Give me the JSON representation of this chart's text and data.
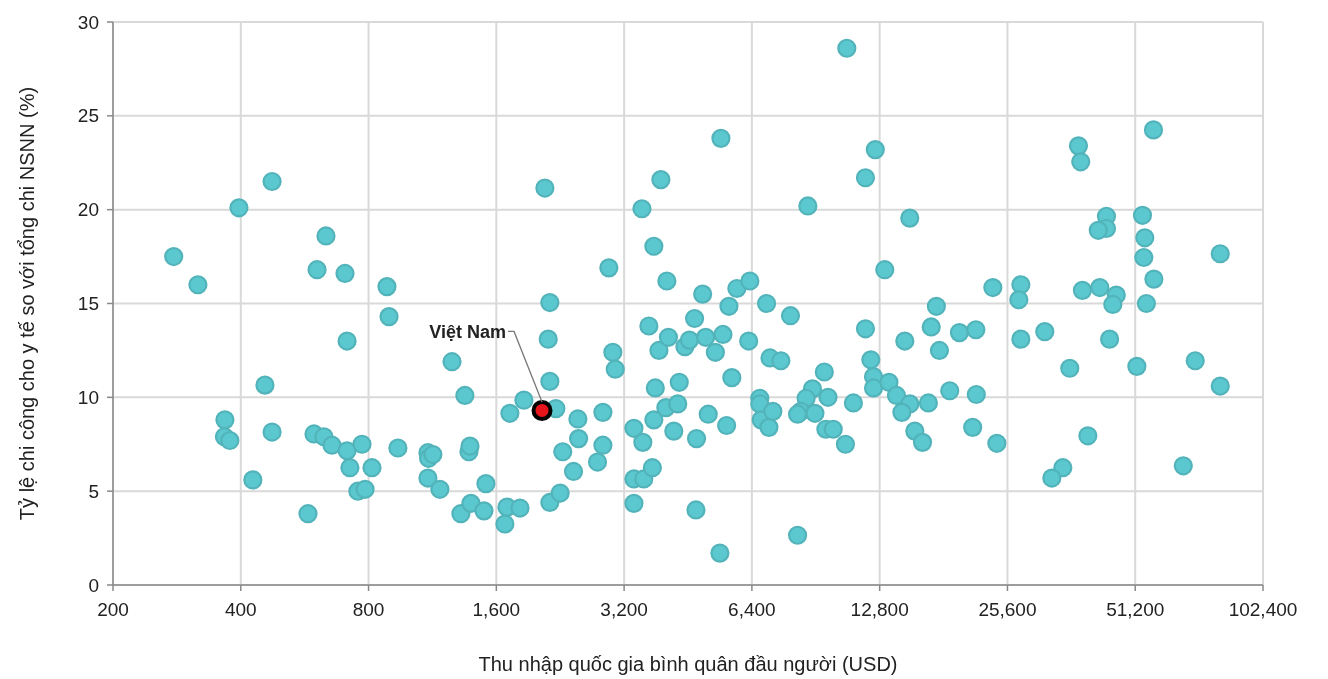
{
  "chart_data": {
    "type": "scatter",
    "xlabel": "Thu nhập quốc gia bình quân đầu người (USD)",
    "ylabel": "Tỷ lệ chi công cho y tế so với tổng chi NSNN (%)",
    "log": "x",
    "grid": true,
    "marker": "circle",
    "xlim": [
      200,
      102400
    ],
    "ylim": [
      0,
      30
    ],
    "xticks": [
      200,
      400,
      800,
      {
        "value": 1600,
        "label": "1,600"
      },
      {
        "value": 3200,
        "label": "3,200"
      },
      {
        "value": 6400,
        "label": "6,400"
      },
      {
        "value": 12800,
        "label": "12,800"
      },
      {
        "value": 25600,
        "label": "25,600"
      },
      {
        "value": 51200,
        "label": "51,200"
      },
      {
        "value": 102400,
        "label": "102,400"
      }
    ],
    "yticks": [
      0,
      5,
      10,
      15,
      20,
      25,
      30
    ],
    "annotations": [
      {
        "text": "Việt Nam",
        "x": 2050,
        "y": 9.3
      }
    ],
    "series": [
      {
        "color": "#5bc8cf",
        "x": [
          278,
          317,
          396,
          367,
          366,
          377,
          427,
          456,
          474,
          474,
          576,
          595,
          605,
          628,
          635,
          656,
          704,
          712,
          712,
          723,
          755,
          772,
          785,
          815,
          884,
          894,
          938,
          1104,
          1108,
          1104,
          1134,
          1178,
          1258,
          1320,
          1349,
          1379,
          1387,
          1394,
          1496,
          1512,
          1676,
          1695,
          1722,
          1819,
          1858,
          2082,
          2210,
          2139,
          2120,
          2139,
          2490,
          2500,
          2294,
          2432,
          2139,
          2262,
          2852,
          2852,
          2770,
          2946,
          3010,
          3050,
          3375,
          3542,
          3375,
          3560,
          3730,
          3375,
          3525,
          3906,
          3760,
          4035,
          3660,
          3865,
          4070,
          3790,
          4316,
          4013,
          4280,
          3760,
          4190,
          4740,
          4725,
          5380,
          5410,
          4450,
          4560,
          4690,
          4900,
          4980,
          5250,
          5470,
          5050,
          5580,
          5740,
          5650,
          5900,
          6330,
          6290,
          6930,
          7890,
          7060,
          7490,
          6680,
          6680,
          6730,
          7020,
          7170,
          8200,
          10710,
          8670,
          11850,
          12500,
          13160,
          11850,
          12200,
          12380,
          12380,
          9480,
          9670,
          8890,
          8590,
          8350,
          9010,
          8200,
          9560,
          9950,
          10630,
          11100,
          15070,
          17410,
          16930,
          14670,
          17700,
          19730,
          21570,
          23650,
          13460,
          14020,
          15070,
          14440,
          16670,
          18720,
          21620,
          15490,
          16150,
          21200,
          24170,
          27530,
          27230,
          27530,
          31350,
          35900,
          39600,
          34570,
          32570,
          37630,
          38100,
          43800,
          43800,
          41900,
          38450,
          42250,
          46200,
          45340,
          44560,
          53260,
          53930,
          53640,
          56650,
          54400,
          51660,
          56530,
          66450,
          70900,
          81200,
          81200
        ],
        "values": [
          17.5,
          16.0,
          20.1,
          8.8,
          7.9,
          7.7,
          5.6,
          10.65,
          21.5,
          8.15,
          3.8,
          8.05,
          16.8,
          7.9,
          18.6,
          7.45,
          16.6,
          13.0,
          7.15,
          6.25,
          5.0,
          7.5,
          5.1,
          6.25,
          15.9,
          14.3,
          7.3,
          7.05,
          6.75,
          5.7,
          6.95,
          5.1,
          11.9,
          3.8,
          10.1,
          7.1,
          7.4,
          4.35,
          3.95,
          5.4,
          3.25,
          4.15,
          9.15,
          4.1,
          9.85,
          21.15,
          9.4,
          15.05,
          13.1,
          10.85,
          8.85,
          7.8,
          7.1,
          6.05,
          4.4,
          4.9,
          9.2,
          7.45,
          6.55,
          16.9,
          12.4,
          11.5,
          8.35,
          7.6,
          5.65,
          5.65,
          6.25,
          4.35,
          20.05,
          21.6,
          18.05,
          16.2,
          13.8,
          12.5,
          13.2,
          10.5,
          10.8,
          9.45,
          9.65,
          8.8,
          8.2,
          7.8,
          4.0,
          1.7,
          23.8,
          12.7,
          13.05,
          14.2,
          15.5,
          13.2,
          12.4,
          13.35,
          9.1,
          8.5,
          11.05,
          14.85,
          15.8,
          16.2,
          13.0,
          15.0,
          14.35,
          12.1,
          11.95,
          9.95,
          9.65,
          8.8,
          8.4,
          9.25,
          2.65,
          28.6,
          20.2,
          21.7,
          23.2,
          16.8,
          13.65,
          12.0,
          11.1,
          10.5,
          11.35,
          10.0,
          10.45,
          9.95,
          9.25,
          9.15,
          9.1,
          8.3,
          8.3,
          7.5,
          9.7,
          19.55,
          14.85,
          13.75,
          13.0,
          12.5,
          13.45,
          13.6,
          15.85,
          10.8,
          10.1,
          9.65,
          9.2,
          9.7,
          10.35,
          10.15,
          8.2,
          7.6,
          8.4,
          7.55,
          16.0,
          15.2,
          13.1,
          13.5,
          11.55,
          7.95,
          6.25,
          5.7,
          23.4,
          22.55,
          19.65,
          19.0,
          18.9,
          15.7,
          15.85,
          15.45,
          14.95,
          13.1,
          19.7,
          18.5,
          17.45,
          16.3,
          15.0,
          11.65,
          24.25,
          6.35,
          11.95,
          17.65,
          10.6
        ]
      },
      {
        "color": "#e8141b",
        "x": [
          2050
        ],
        "values": [
          9.3
        ]
      }
    ]
  }
}
